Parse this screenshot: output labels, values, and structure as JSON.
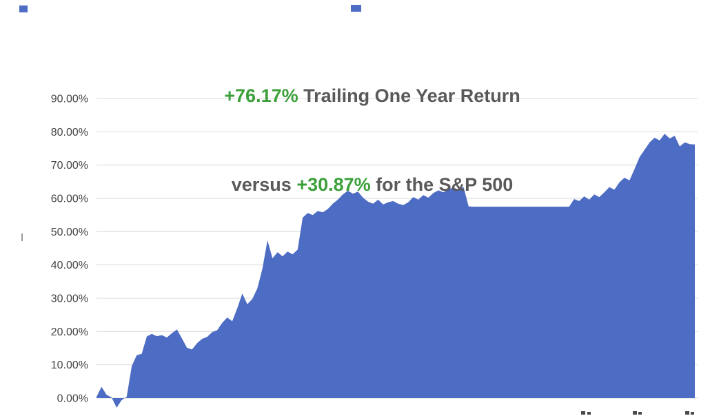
{
  "title": {
    "line1": {
      "highlight": "+76.17%",
      "rest": " Trailing One Year Return"
    },
    "line2": {
      "pre": "versus ",
      "highlight": "+30.87%",
      "rest": " for the S&P 500"
    }
  },
  "colors": {
    "area": "#4d6cc3",
    "highlight_green": "#3ca03a",
    "title_text": "#595959",
    "gridline": "#d9d9d9",
    "axis_label": "#444444"
  },
  "chart_data": {
    "type": "area",
    "title": "+76.17% Trailing One Year Return versus +30.87% for the S&P 500",
    "series_name": "Trailing One Year Return",
    "xlabel": "",
    "ylabel": "",
    "unit": "%",
    "ylim": [
      0,
      90
    ],
    "grid": true,
    "legend": false,
    "x_axis_labels_cropped": true,
    "final_value": 76.17,
    "sp500_comparison_value": 30.87,
    "ytick_values": [
      0,
      10,
      20,
      30,
      40,
      50,
      60,
      70,
      80,
      90
    ],
    "ytick_labels": [
      "0.00%",
      "10.00%",
      "20.00%",
      "30.00%",
      "40.00%",
      "50.00%",
      "60.00%",
      "70.00%",
      "80.00%",
      "90.00%"
    ],
    "values": [
      0.4,
      3.4,
      1.0,
      0.2,
      -2.9,
      -0.6,
      0.4,
      9.6,
      12.9,
      13.3,
      18.5,
      19.3,
      18.6,
      18.9,
      18.2,
      19.5,
      20.6,
      17.9,
      15.1,
      14.6,
      16.5,
      17.8,
      18.4,
      19.8,
      20.4,
      22.6,
      24.2,
      23.1,
      27.0,
      31.4,
      28.2,
      29.8,
      33.0,
      38.9,
      47.4,
      42.0,
      43.8,
      42.6,
      44.0,
      43.2,
      44.6,
      54.2,
      55.6,
      55.0,
      56.2,
      55.8,
      56.8,
      58.4,
      59.6,
      61.2,
      62.3,
      61.4,
      62.0,
      60.2,
      59.0,
      58.4,
      59.6,
      58.2,
      58.8,
      59.2,
      58.4,
      58.0,
      58.8,
      60.4,
      59.6,
      61.0,
      60.2,
      61.6,
      62.4,
      61.8,
      62.8,
      63.2,
      62.6,
      63.4,
      57.6,
      57.5,
      57.5,
      57.5,
      57.5,
      57.5,
      57.5,
      57.5,
      57.5,
      57.5,
      57.5,
      57.5,
      57.5,
      57.5,
      57.5,
      57.5,
      57.5,
      57.5,
      57.5,
      57.5,
      57.5,
      59.8,
      59.2,
      60.6,
      59.6,
      61.2,
      60.4,
      61.8,
      63.4,
      62.6,
      64.8,
      66.2,
      65.4,
      68.8,
      72.4,
      74.6,
      76.8,
      78.2,
      77.4,
      79.4,
      78.0,
      78.8,
      75.6,
      76.8,
      76.3,
      76.17
    ]
  }
}
